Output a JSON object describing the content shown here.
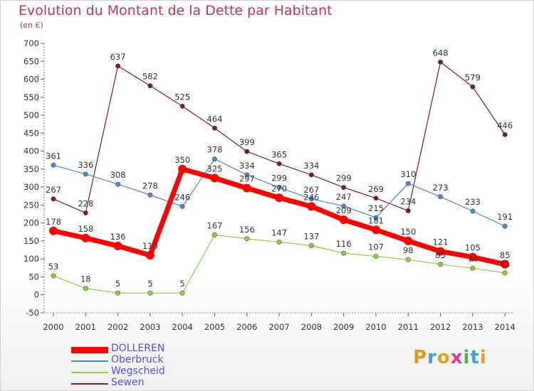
{
  "header": {
    "title": "Evolution du Montant de la Dette par Habitant",
    "subtitle": "(en €)"
  },
  "logo": {
    "letters": [
      "P",
      "r",
      "o",
      "x",
      "i",
      "t",
      "i"
    ],
    "colors": [
      "#e09a1a",
      "#3aa0d8",
      "#e0a020",
      "#d83a8a",
      "#50b050",
      "#3aa0d8",
      "#e0a020"
    ]
  },
  "chart_data": {
    "type": "line",
    "x": [
      "2000",
      "2001",
      "2002",
      "2003",
      "2004",
      "2005",
      "2006",
      "2007",
      "2008",
      "2009",
      "2010",
      "2011",
      "2012",
      "2013",
      "2014"
    ],
    "ylim": [
      -50,
      700
    ],
    "yticks": [
      "-50",
      "0",
      "50",
      "100",
      "150",
      "200",
      "250",
      "300",
      "350",
      "400",
      "450",
      "500",
      "550",
      "600",
      "650",
      "700"
    ],
    "grid": false,
    "legend_position": "bottom-left",
    "series": [
      {
        "name": "Sewen",
        "color": "#7a1a2a",
        "values": [
          267,
          228,
          637,
          582,
          525,
          464,
          399,
          365,
          334,
          299,
          269,
          234,
          648,
          579,
          446
        ]
      },
      {
        "name": "Oberbruck",
        "color": "#4a8ac8",
        "values": [
          361,
          336,
          308,
          278,
          246,
          378,
          334,
          299,
          267,
          247,
          215,
          310,
          273,
          233,
          191
        ]
      },
      {
        "name": "Wegscheid",
        "color": "#8ad040",
        "values": [
          53,
          18,
          5,
          5,
          5,
          167,
          156,
          147,
          137,
          116,
          107,
          98,
          85,
          74,
          61
        ]
      },
      {
        "name": "DOLLEREN",
        "color": "#ff0000",
        "values": [
          178,
          158,
          136,
          110,
          350,
          325,
          297,
          270,
          246,
          209,
          181,
          150,
          121,
          105,
          85
        ]
      }
    ],
    "value_labels": {
      "Sewen": [
        "267",
        "228",
        "637",
        "582",
        "525",
        "464",
        "399",
        "365",
        "334",
        "299",
        "269",
        "234",
        "648",
        "579",
        "446"
      ],
      "Oberbruck": [
        "361",
        "336",
        "308",
        "278",
        "246",
        "378",
        "334",
        "299",
        "267",
        "247",
        "215",
        "310",
        "273",
        "233",
        "191"
      ],
      "Wegscheid": [
        "53",
        "18",
        "5",
        "5",
        "5",
        "167",
        "156",
        "147",
        "137",
        "116",
        "107",
        "98",
        "85",
        "74",
        "61"
      ],
      "DOLLEREN": [
        "178",
        "158",
        "136",
        "110",
        "350",
        "325",
        "297",
        "270",
        "246",
        "209",
        "181",
        "150",
        "121",
        "105",
        "85"
      ]
    }
  }
}
